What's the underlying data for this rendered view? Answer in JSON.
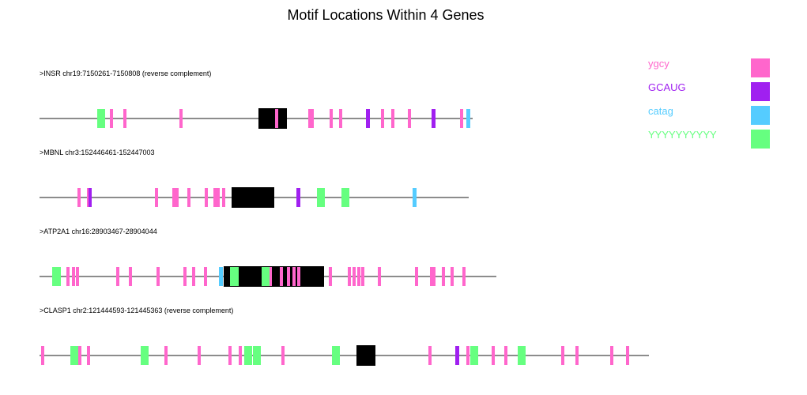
{
  "title": "Motif Locations Within 4 Genes",
  "legend": [
    {
      "key": "ygcy",
      "label": "ygcy",
      "color": "#ff66cc"
    },
    {
      "key": "GCAUG",
      "label": "GCAUG",
      "color": "#a020f0"
    },
    {
      "key": "catag",
      "label": "catag",
      "color": "#55ccff"
    },
    {
      "key": "YYYYYYYYYY",
      "label": "YYYYYYYYYY",
      "color": "#66ff80"
    }
  ],
  "exon_color": "#000000",
  "genes": [
    {
      "name": "INSR",
      "label": ">INSR chr19:7150261-7150808 (reverse complement)",
      "length": 548,
      "exons": [
        {
          "start": 277,
          "end": 313
        }
      ],
      "motifs": [
        {
          "type": "YYYYYYYYYY",
          "start": 73,
          "end": 83
        },
        {
          "type": "ygcy",
          "start": 89,
          "end": 93
        },
        {
          "type": "ygcy",
          "start": 106,
          "end": 110
        },
        {
          "type": "ygcy",
          "start": 177,
          "end": 181
        },
        {
          "type": "ygcy",
          "start": 298,
          "end": 302
        },
        {
          "type": "ygcy",
          "start": 340,
          "end": 347
        },
        {
          "type": "ygcy",
          "start": 367,
          "end": 371
        },
        {
          "type": "ygcy",
          "start": 379,
          "end": 383
        },
        {
          "type": "GCAUG",
          "start": 413,
          "end": 418
        },
        {
          "type": "ygcy",
          "start": 432,
          "end": 436
        },
        {
          "type": "ygcy",
          "start": 445,
          "end": 449
        },
        {
          "type": "ygcy",
          "start": 466,
          "end": 470
        },
        {
          "type": "GCAUG",
          "start": 496,
          "end": 501
        },
        {
          "type": "ygcy",
          "start": 532,
          "end": 536
        },
        {
          "type": "catag",
          "start": 540,
          "end": 545
        }
      ]
    },
    {
      "name": "MBNL",
      "label": ">MBNL chr3:152446461-152447003",
      "length": 543,
      "exons": [
        {
          "start": 243,
          "end": 297
        }
      ],
      "motifs": [
        {
          "type": "ygcy",
          "start": 48,
          "end": 52
        },
        {
          "type": "ygcy",
          "start": 60,
          "end": 64
        },
        {
          "type": "GCAUG",
          "start": 62,
          "end": 66
        },
        {
          "type": "ygcy",
          "start": 146,
          "end": 150
        },
        {
          "type": "ygcy",
          "start": 168,
          "end": 176
        },
        {
          "type": "ygcy",
          "start": 187,
          "end": 191
        },
        {
          "type": "ygcy",
          "start": 209,
          "end": 213
        },
        {
          "type": "ygcy",
          "start": 220,
          "end": 228
        },
        {
          "type": "ygcy",
          "start": 231,
          "end": 235
        },
        {
          "type": "GCAUG",
          "start": 325,
          "end": 330
        },
        {
          "type": "YYYYYYYYYY",
          "start": 351,
          "end": 361
        },
        {
          "type": "YYYYYYYYYY",
          "start": 382,
          "end": 392
        },
        {
          "type": "catag",
          "start": 472,
          "end": 477
        }
      ]
    },
    {
      "name": "ATP2A1",
      "label": ">ATP2A1 chr16:28903467-28904044",
      "length": 578,
      "exons": [
        {
          "start": 233,
          "end": 360
        }
      ],
      "motifs": [
        {
          "type": "YYYYYYYYYY",
          "start": 16,
          "end": 27
        },
        {
          "type": "ygcy",
          "start": 34,
          "end": 38
        },
        {
          "type": "ygcy",
          "start": 41,
          "end": 45
        },
        {
          "type": "ygcy",
          "start": 46,
          "end": 50
        },
        {
          "type": "ygcy",
          "start": 97,
          "end": 101
        },
        {
          "type": "ygcy",
          "start": 113,
          "end": 117
        },
        {
          "type": "ygcy",
          "start": 148,
          "end": 152
        },
        {
          "type": "ygcy",
          "start": 182,
          "end": 186
        },
        {
          "type": "ygcy",
          "start": 193,
          "end": 197
        },
        {
          "type": "ygcy",
          "start": 208,
          "end": 212
        },
        {
          "type": "catag",
          "start": 227,
          "end": 232
        },
        {
          "type": "YYYYYYYYYY",
          "start": 241,
          "end": 252
        },
        {
          "type": "YYYYYYYYYY",
          "start": 281,
          "end": 291
        },
        {
          "type": "ygcy",
          "start": 291,
          "end": 294
        },
        {
          "type": "ygcy",
          "start": 304,
          "end": 308
        },
        {
          "type": "ygcy",
          "start": 313,
          "end": 317
        },
        {
          "type": "ygcy",
          "start": 320,
          "end": 324
        },
        {
          "type": "ygcy",
          "start": 326,
          "end": 330
        },
        {
          "type": "ygcy",
          "start": 366,
          "end": 370
        },
        {
          "type": "ygcy",
          "start": 390,
          "end": 394
        },
        {
          "type": "ygcy",
          "start": 396,
          "end": 400
        },
        {
          "type": "ygcy",
          "start": 402,
          "end": 406
        },
        {
          "type": "ygcy",
          "start": 407,
          "end": 411
        },
        {
          "type": "ygcy",
          "start": 428,
          "end": 432
        },
        {
          "type": "ygcy",
          "start": 475,
          "end": 479
        },
        {
          "type": "ygcy",
          "start": 494,
          "end": 498
        },
        {
          "type": "ygcy",
          "start": 497,
          "end": 501
        },
        {
          "type": "ygcy",
          "start": 509,
          "end": 513
        },
        {
          "type": "ygcy",
          "start": 520,
          "end": 524
        },
        {
          "type": "ygcy",
          "start": 535,
          "end": 539
        }
      ]
    },
    {
      "name": "CLASP1",
      "label": ">CLASP1 chr2:121444593-121445363 (reverse complement)",
      "length": 771,
      "exons": [
        {
          "start": 401,
          "end": 425
        }
      ],
      "motifs": [
        {
          "type": "ygcy",
          "start": 2,
          "end": 6
        },
        {
          "type": "YYYYYYYYYY",
          "start": 39,
          "end": 49
        },
        {
          "type": "ygcy",
          "start": 49,
          "end": 53
        },
        {
          "type": "ygcy",
          "start": 60,
          "end": 64
        },
        {
          "type": "YYYYYYYYYY",
          "start": 128,
          "end": 138
        },
        {
          "type": "ygcy",
          "start": 158,
          "end": 162
        },
        {
          "type": "ygcy",
          "start": 200,
          "end": 204
        },
        {
          "type": "ygcy",
          "start": 239,
          "end": 243
        },
        {
          "type": "ygcy",
          "start": 252,
          "end": 256
        },
        {
          "type": "YYYYYYYYYY",
          "start": 259,
          "end": 269
        },
        {
          "type": "YYYYYYYYYY",
          "start": 270,
          "end": 280
        },
        {
          "type": "ygcy",
          "start": 306,
          "end": 310
        },
        {
          "type": "YYYYYYYYYY",
          "start": 370,
          "end": 380
        },
        {
          "type": "ygcy",
          "start": 492,
          "end": 496
        },
        {
          "type": "GCAUG",
          "start": 526,
          "end": 531
        },
        {
          "type": "ygcy",
          "start": 540,
          "end": 544
        },
        {
          "type": "YYYYYYYYYY",
          "start": 545,
          "end": 555
        },
        {
          "type": "ygcy",
          "start": 572,
          "end": 576
        },
        {
          "type": "ygcy",
          "start": 588,
          "end": 592
        },
        {
          "type": "YYYYYYYYYY",
          "start": 605,
          "end": 615
        },
        {
          "type": "ygcy",
          "start": 660,
          "end": 664
        },
        {
          "type": "ygcy",
          "start": 678,
          "end": 682
        },
        {
          "type": "ygcy",
          "start": 722,
          "end": 726
        },
        {
          "type": "ygcy",
          "start": 742,
          "end": 746
        }
      ]
    }
  ]
}
